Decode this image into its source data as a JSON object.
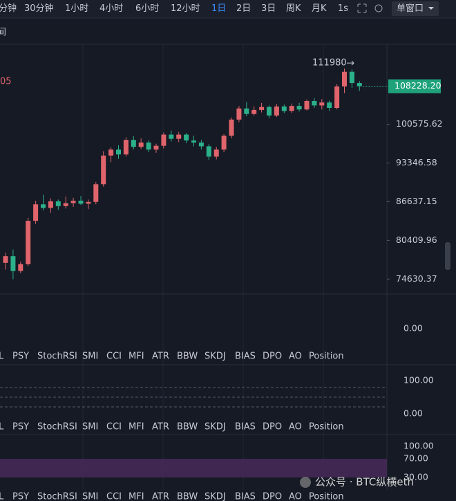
{
  "toolbar": {
    "intervals": [
      "分钟",
      "30分钟",
      "1小时",
      "4小时",
      "6小时",
      "12小时",
      "1日",
      "2日",
      "3日",
      "周K",
      "月K",
      "1s"
    ],
    "active": 6,
    "window": "单窗口"
  },
  "clipped_title": "间",
  "clipped_marker": "05",
  "chart_data": {
    "type": "candlestick",
    "up_color": "#e0646b",
    "down_color": "#2bb18a",
    "ylim": [
      72500,
      117200
    ],
    "log_scale": true,
    "yticks": [
      100575.62,
      93346.58,
      86637.15,
      80409.96,
      74630.37
    ],
    "last_price": {
      "value": 108228.2,
      "label": "108228.20"
    },
    "high_label": 111980,
    "ohlc": [
      [
        77000,
        78500,
        76000,
        78000
      ],
      [
        78000,
        79000,
        74600,
        75800
      ],
      [
        75800,
        77200,
        75500,
        76800
      ],
      [
        76800,
        84000,
        76500,
        83500
      ],
      [
        83500,
        86800,
        83000,
        86200
      ],
      [
        86200,
        87800,
        85200,
        85600
      ],
      [
        85600,
        87200,
        84800,
        86700
      ],
      [
        86700,
        87000,
        85300,
        85900
      ],
      [
        85900,
        87500,
        85500,
        86400
      ],
      [
        86400,
        87300,
        85800,
        86800
      ],
      [
        86800,
        87600,
        86100,
        86300
      ],
      [
        86300,
        87000,
        85400,
        86600
      ],
      [
        86600,
        90000,
        86200,
        89600
      ],
      [
        89600,
        95500,
        89200,
        94700
      ],
      [
        94700,
        96200,
        93500,
        95800
      ],
      [
        95800,
        96600,
        94100,
        94900
      ],
      [
        94900,
        98100,
        94500,
        97600
      ],
      [
        97600,
        98300,
        95800,
        96300
      ],
      [
        96300,
        97900,
        95900,
        97100
      ],
      [
        97100,
        97500,
        95300,
        95800
      ],
      [
        95800,
        96900,
        95200,
        96500
      ],
      [
        96500,
        99000,
        96000,
        98600
      ],
      [
        98600,
        99400,
        97300,
        97800
      ],
      [
        97800,
        99100,
        97200,
        98600
      ],
      [
        98600,
        98900,
        97000,
        97500
      ],
      [
        97500,
        98400,
        96400,
        97100
      ],
      [
        97100,
        97600,
        95800,
        96400
      ],
      [
        96400,
        96800,
        93900,
        94500
      ],
      [
        94500,
        96300,
        94000,
        95800
      ],
      [
        95800,
        98700,
        95300,
        98400
      ],
      [
        98400,
        101900,
        97900,
        101500
      ],
      [
        101500,
        104200,
        101000,
        103700
      ],
      [
        103700,
        105000,
        102200,
        102600
      ],
      [
        102600,
        104100,
        102300,
        103400
      ],
      [
        103400,
        104800,
        102900,
        104000
      ],
      [
        104000,
        104300,
        101800,
        102300
      ],
      [
        102300,
        104600,
        102000,
        104100
      ],
      [
        104100,
        104500,
        102800,
        103200
      ],
      [
        103200,
        104700,
        102800,
        104200
      ],
      [
        104200,
        104800,
        103100,
        103500
      ],
      [
        103500,
        105500,
        103300,
        105200
      ],
      [
        105200,
        105800,
        103800,
        104300
      ],
      [
        104300,
        105600,
        103500,
        104900
      ],
      [
        104900,
        105300,
        103200,
        103800
      ],
      [
        103800,
        108700,
        103500,
        108200
      ],
      [
        108200,
        111980,
        106800,
        111300
      ],
      [
        111300,
        111800,
        107900,
        108900
      ],
      [
        108900,
        109300,
        107300,
        108228.2
      ]
    ]
  },
  "panels": [
    {
      "ticks": [
        "0.00"
      ]
    },
    {
      "ticks": [
        "100.00",
        "0.00"
      ]
    },
    {
      "ticks": [
        "100.00",
        "70.00",
        "30.00"
      ]
    }
  ],
  "indicator_tabs": [
    "L",
    "PSY",
    "StochRSI",
    "SMI",
    "CCI",
    "MFI",
    "ATR",
    "BBW",
    "SKDJ",
    "BIAS",
    "DPO",
    "AO",
    "Position"
  ],
  "watermark": "公众号 · BTC纵横eth"
}
